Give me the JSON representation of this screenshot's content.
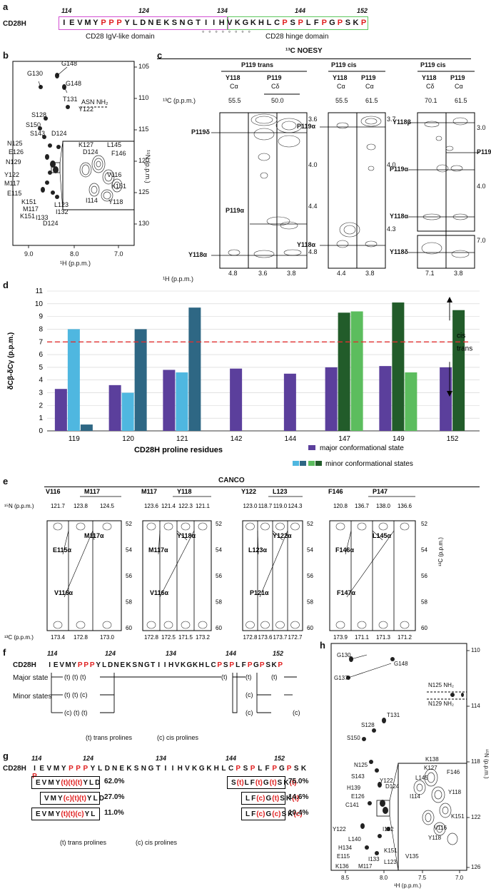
{
  "panels": {
    "a": "a",
    "b": "b",
    "c": "c",
    "d": "d",
    "e": "e",
    "f": "f",
    "g": "g",
    "h": "h"
  },
  "panel_a": {
    "row_label": "CD28H",
    "numbers": [
      "114",
      "124",
      "134",
      "144",
      "152"
    ],
    "residues": [
      "I",
      "E",
      "V",
      "M",
      "Y",
      "P",
      "P",
      "P",
      "Y",
      "L",
      "D",
      "N",
      "E",
      "K",
      "S",
      "N",
      "G",
      "T",
      "I",
      "I",
      "H",
      "V",
      "K",
      "G",
      "K",
      "H",
      "L",
      "C",
      "P",
      "S",
      "P",
      "L",
      "F",
      "P",
      "G",
      "P",
      "S",
      "K",
      "P"
    ],
    "proline_color": "#e02020",
    "igv_color": "#d24fd2",
    "hinge_color": "#5cc85c",
    "igv_label": "CD28 IgV-like domain",
    "hinge_label": "CD28 hinge domain",
    "dots": "∘ ∘ ∘ ∘ ∘ ∘ ∘ ∘"
  },
  "panel_b": {
    "x_axis_label": "¹H (p.p.m.)",
    "x_ticks": [
      "9.0",
      "8.0",
      "7.0"
    ],
    "y_axis_label": "¹⁵N (p.p.m.)",
    "y_ticks": [
      "105",
      "110",
      "115",
      "120",
      "125",
      "130"
    ],
    "peak_labels": [
      "G148",
      "G130",
      "G148",
      "ASN NH₂",
      "T131",
      "Y122",
      "S128",
      "S150",
      "S143",
      "D124",
      "N125",
      "E126",
      "N129",
      "Y122",
      "M117",
      "E115",
      "K151",
      "M117",
      "K151",
      "I133",
      "D124",
      "I132",
      "L123",
      "K127",
      "D124",
      "L145",
      "F146",
      "V116",
      "K151",
      "I114",
      "Y118"
    ]
  },
  "panel_c": {
    "title": "¹³C NOESY",
    "columns": [
      {
        "group": "P119 trans",
        "h1": "Y118",
        "h2": "P119",
        "s1": "Cα",
        "s2": "Cδ",
        "c1": "55.5",
        "c2": "50.0"
      },
      {
        "group": "P119 cis",
        "h1": "Y118",
        "h2": "P119",
        "s1": "Cα",
        "s2": "Cα",
        "c1": "55.5",
        "c2": "61.5"
      },
      {
        "group": "P119 cis",
        "h1": "Y118",
        "h2": "P119",
        "s1": "Cδ",
        "s2": "Cα",
        "c1": "70.1",
        "c2": "61.5"
      }
    ],
    "c13_label": "¹³C (p.p.m.)",
    "h1_label": "¹H (p.p.m.)",
    "strip1_labels": [
      "P119δ",
      "P119α",
      "Y118α"
    ],
    "strip1_y_ticks": [
      "3.6",
      "4.0",
      "4.4",
      "4.8"
    ],
    "strip1_x_ticks": [
      "4.8",
      "3.6",
      "3.8"
    ],
    "strip2_labels": [
      "P119α",
      "Y118α"
    ],
    "strip2_y_ticks": [
      "3.7",
      "4.0",
      "4.3"
    ],
    "strip2_x_ticks": [
      "4.4",
      "3.8"
    ],
    "strip3_labels": [
      "Y118β",
      "P119δ",
      "P119α",
      "Y118α",
      "Y118δ"
    ],
    "strip3_y_ticks": [
      "3.0",
      "4.0",
      "7.0"
    ],
    "strip3_x_ticks": [
      "7.1",
      "3.8"
    ]
  },
  "chart_data": {
    "type": "bar",
    "ylabel": "δCβ-δCγ (p.p.m.)",
    "xlabel": "CD28H proline residues",
    "ylim": [
      0,
      11
    ],
    "yticks": [
      0,
      1,
      2,
      3,
      4,
      5,
      6,
      7,
      8,
      9,
      10,
      11
    ],
    "threshold": 7,
    "threshold_color": "#e03030",
    "cis_label": "cis",
    "trans_label": "trans",
    "categories": [
      "119",
      "120",
      "121",
      "142",
      "144",
      "147",
      "149",
      "152"
    ],
    "groups": [
      {
        "category": "119",
        "bars": [
          {
            "v": 3.3,
            "c": "#5b3f9c"
          },
          {
            "v": 8.0,
            "c": "#4fb7e0"
          },
          {
            "v": 0.5,
            "c": "#2e6784"
          }
        ]
      },
      {
        "category": "120",
        "bars": [
          {
            "v": 3.6,
            "c": "#5b3f9c"
          },
          {
            "v": 3.0,
            "c": "#4fb7e0"
          },
          {
            "v": 8.0,
            "c": "#2e6784"
          }
        ]
      },
      {
        "category": "121",
        "bars": [
          {
            "v": 4.8,
            "c": "#5b3f9c"
          },
          {
            "v": 4.6,
            "c": "#4fb7e0"
          },
          {
            "v": 9.7,
            "c": "#2e6784"
          }
        ]
      },
      {
        "category": "142",
        "bars": [
          {
            "v": 4.9,
            "c": "#5b3f9c"
          }
        ]
      },
      {
        "category": "144",
        "bars": [
          {
            "v": 4.5,
            "c": "#5b3f9c"
          }
        ]
      },
      {
        "category": "147",
        "bars": [
          {
            "v": 5.0,
            "c": "#5b3f9c"
          },
          {
            "v": 9.3,
            "c": "#225c2a"
          },
          {
            "v": 9.4,
            "c": "#5cbd5e"
          }
        ]
      },
      {
        "category": "149",
        "bars": [
          {
            "v": 5.1,
            "c": "#5b3f9c"
          },
          {
            "v": 10.1,
            "c": "#225c2a"
          },
          {
            "v": 4.6,
            "c": "#5cbd5e"
          }
        ]
      },
      {
        "category": "152",
        "bars": [
          {
            "v": 5.0,
            "c": "#5b3f9c"
          },
          {
            "v": 9.5,
            "c": "#225c2a"
          }
        ]
      }
    ],
    "legend": [
      {
        "label": "major conformational state",
        "colors": [
          "#5b3f9c"
        ]
      },
      {
        "label": "minor conformational states",
        "colors": [
          "#4fb7e0",
          "#2e6784",
          "#5cbd5e",
          "#225c2a"
        ]
      }
    ]
  },
  "panel_e": {
    "title": "CANCO",
    "n15_label": "¹⁵N (p.p.m.)",
    "c13_label": "¹³C (p.p.m.)",
    "c13_right_label": "¹³C (p.p.m.)",
    "y_ticks": [
      "52",
      "54",
      "56",
      "58",
      "60"
    ],
    "strips": [
      {
        "res1": "V116",
        "res2": "M117",
        "n": [
          "121.7",
          "123.8",
          "124.5"
        ],
        "c": [
          "173.4",
          "172.8",
          "173.0"
        ],
        "labels": [
          "E115α",
          "M117α",
          "V116α"
        ]
      },
      {
        "res1": "M117",
        "res2": "Y118",
        "n": [
          "123.6",
          "121.4",
          "122.3",
          "121.1"
        ],
        "c": [
          "172.8",
          "172.5",
          "171.5",
          "173.2"
        ],
        "labels": [
          "M117α",
          "Y118α",
          "V116α"
        ]
      },
      {
        "res1": "Y122",
        "res2": "L123",
        "n": [
          "123.0",
          "118.7",
          "119.0",
          "124.3"
        ],
        "c": [
          "172.8",
          "173.6",
          "173.7",
          "172.7"
        ],
        "labels": [
          "L123α",
          "Y122α",
          "P121α"
        ]
      },
      {
        "res1": "F146",
        "res2": "P147",
        "n": [
          "120.8",
          "136.7",
          "138.0",
          "136.6"
        ],
        "c": [
          "173.9",
          "171.1",
          "171.3",
          "171.2"
        ],
        "labels": [
          "F146α",
          "L145α",
          "F147α"
        ]
      }
    ]
  },
  "panel_f": {
    "row_label": "CD28H",
    "numbers": [
      "114",
      "124",
      "134",
      "144",
      "152"
    ],
    "major_label": "Major state",
    "minor_label": "Minor states",
    "major_left": "(t) (t) (t)",
    "minor_left_1": "(t) (t) (c)",
    "minor_left_2": "(c) (t) (t)",
    "major_right_a": "(t)",
    "major_right_b": "(t)",
    "major_right_c": "(t)",
    "minor_right_1": "(c)",
    "minor_right_2b": "(c)",
    "minor_right_2c": "(c)",
    "legend_t": "(t) trans prolines",
    "legend_c": "(c) cis prolines"
  },
  "panel_g": {
    "row_label": "CD28H",
    "numbers": [
      "114",
      "124",
      "134",
      "144",
      "152"
    ],
    "left_rows": [
      {
        "seq": "EVMY(t)(t)(t)YLD",
        "pct": "62.0%"
      },
      {
        "seq": "VMY(c)(t)(t)YLD",
        "pct": "27.0%"
      },
      {
        "seq": "EVMY(t)(t)(c)YL",
        "pct": "11.0%"
      }
    ],
    "right_rows": [
      {
        "seq": "S(t)LF(t)G(t)SK(t)",
        "pct": "75.0%"
      },
      {
        "seq": "LF(c)G(t)SK(t)",
        "pct": "14.6%"
      },
      {
        "seq": "LF(c)G(c)SK(c)",
        "pct": "10.4%"
      }
    ],
    "legend_t": "(t) trans prolines",
    "legend_c": "(c) cis prolines"
  },
  "panel_h": {
    "x_axis_label": "¹H (p.p.m.)",
    "x_ticks": [
      "8.5",
      "8.0",
      "7.5",
      "7.0"
    ],
    "y_axis_label": "¹⁵N (p.p.m.)",
    "y_ticks": [
      "110",
      "114",
      "118",
      "122",
      "126"
    ],
    "peak_labels": [
      "G130",
      "G148",
      "G137",
      "N125 NH₂",
      "N129 NH₂",
      "T131",
      "S128",
      "S150",
      "K138",
      "K127",
      "F146",
      "N125",
      "S143",
      "Y122",
      "L145",
      "D124",
      "H139",
      "E126",
      "Y118",
      "C141",
      "I114",
      "K151",
      "V116",
      "Y122",
      "L140",
      "I132",
      "Y118",
      "H134",
      "K151",
      "V135",
      "E115",
      "L123",
      "I133",
      "K136",
      "M117"
    ]
  }
}
